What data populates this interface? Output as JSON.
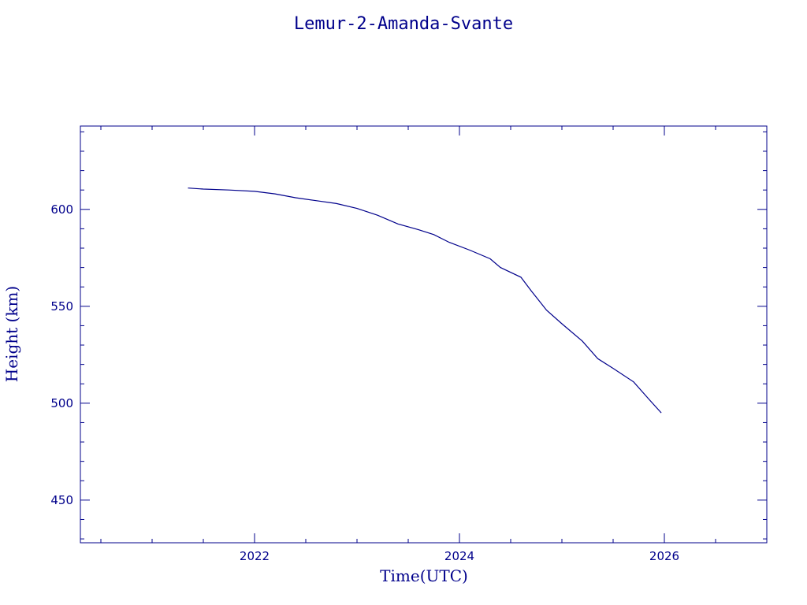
{
  "chart_data": {
    "type": "line",
    "title": "Lemur-2-Amanda-Svante",
    "xlabel": "Time(UTC)",
    "ylabel": "Height (km)",
    "xlim": [
      2020.3,
      2027.0
    ],
    "ylim": [
      428,
      643
    ],
    "x_ticks_major": [
      2022,
      2024,
      2026
    ],
    "x_tick_labels": [
      "2022",
      "2024",
      "2026"
    ],
    "y_ticks_major": [
      450,
      500,
      550,
      600
    ],
    "y_tick_labels": [
      "450",
      "500",
      "550",
      "600"
    ],
    "grid": false,
    "series": [
      {
        "x": [
          2021.35,
          2021.5,
          2021.75,
          2022.0,
          2022.2,
          2022.4,
          2022.6,
          2022.8,
          2023.0,
          2023.2,
          2023.4,
          2023.6,
          2023.75,
          2023.9,
          2024.1,
          2024.3,
          2024.4,
          2024.6,
          2024.7,
          2024.85,
          2025.0,
          2025.2,
          2025.35,
          2025.5,
          2025.7,
          2025.85,
          2025.97
        ],
        "y": [
          611,
          610.5,
          610,
          609.3,
          608,
          606,
          604.5,
          603,
          600.5,
          597,
          592.5,
          589.5,
          587,
          583,
          579,
          574.5,
          570,
          565,
          558,
          548,
          541,
          532,
          523,
          518,
          511,
          502,
          495
        ]
      }
    ]
  }
}
